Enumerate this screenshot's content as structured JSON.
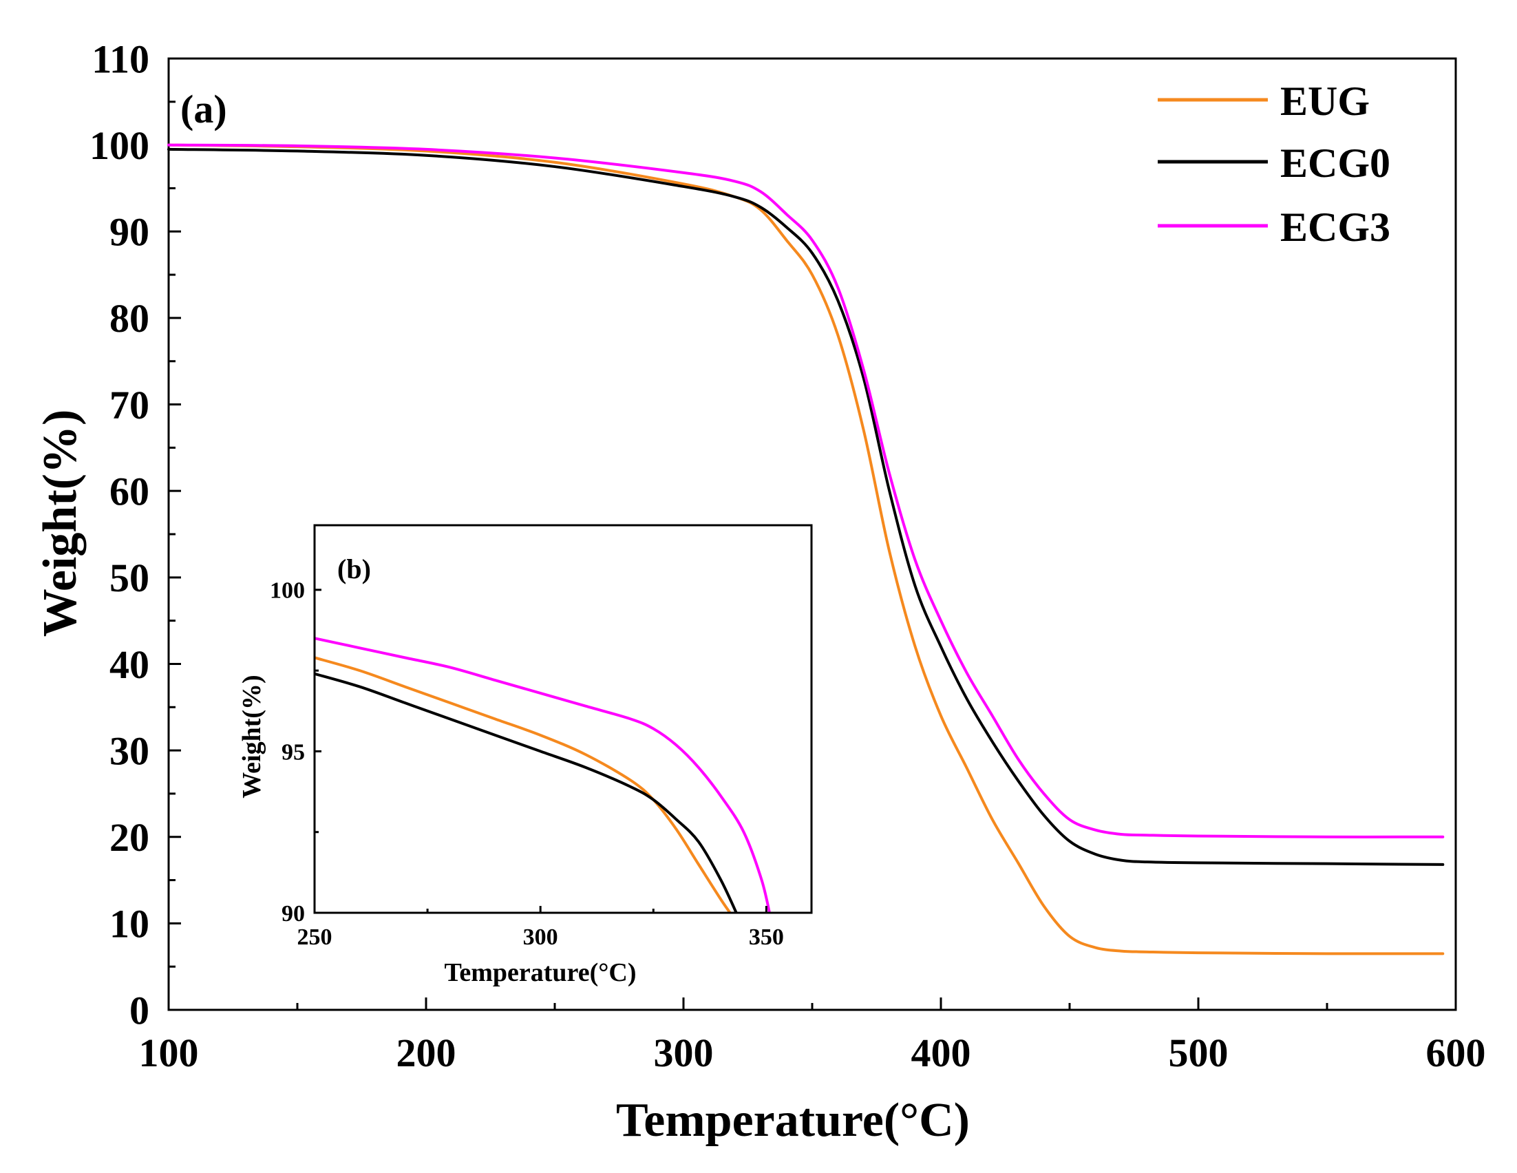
{
  "chart_data": [
    {
      "id": "main",
      "type": "line",
      "panel_label": "(a)",
      "xlabel": "Temperature(°C)",
      "ylabel": "Weight(%)",
      "xlim": [
        100,
        600
      ],
      "ylim": [
        0,
        110
      ],
      "xticks": [
        100,
        200,
        300,
        400,
        500,
        600
      ],
      "yticks": [
        0,
        10,
        20,
        30,
        40,
        50,
        60,
        70,
        80,
        90,
        100,
        110
      ],
      "xtick_labels": [
        "100",
        "200",
        "300",
        "400",
        "500",
        "600"
      ],
      "ytick_labels": [
        "0",
        "10",
        "20",
        "30",
        "40",
        "50",
        "60",
        "70",
        "80",
        "90",
        "100",
        "110"
      ],
      "legend": {
        "position": "top-right",
        "entries": [
          "EUG",
          "ECG0",
          "ECG3"
        ]
      },
      "series": [
        {
          "name": "EUG",
          "color": "#f5891e",
          "x": [
            100,
            150,
            200,
            250,
            300,
            320,
            330,
            340,
            350,
            360,
            370,
            380,
            390,
            400,
            410,
            420,
            430,
            440,
            450,
            460,
            470,
            480,
            500,
            550,
            595
          ],
          "y": [
            100,
            99.8,
            99.3,
            98,
            95.5,
            94,
            92.5,
            89,
            85,
            78,
            67,
            53,
            42,
            34,
            28,
            22,
            17,
            12,
            8.5,
            7.2,
            6.8,
            6.7,
            6.6,
            6.5,
            6.5
          ]
        },
        {
          "name": "ECG0",
          "color": "#000000",
          "x": [
            100,
            150,
            200,
            250,
            300,
            320,
            330,
            340,
            350,
            360,
            370,
            380,
            390,
            400,
            410,
            420,
            430,
            440,
            450,
            460,
            470,
            480,
            500,
            550,
            595
          ],
          "y": [
            99.5,
            99.3,
            98.8,
            97.5,
            95.2,
            94,
            92.8,
            90.5,
            87.5,
            82,
            73,
            60,
            49,
            42,
            36,
            31,
            26.5,
            22.5,
            19.5,
            18,
            17.3,
            17.1,
            17,
            16.9,
            16.8
          ]
        },
        {
          "name": "ECG3",
          "color": "#ff00ff",
          "x": [
            100,
            150,
            200,
            250,
            300,
            320,
            330,
            340,
            350,
            360,
            370,
            380,
            390,
            400,
            410,
            420,
            430,
            440,
            450,
            460,
            470,
            480,
            500,
            550,
            595
          ],
          "y": [
            100,
            99.9,
            99.5,
            98.5,
            96.8,
            95.8,
            94.6,
            92,
            89,
            83.5,
            74,
            62,
            52,
            45,
            39,
            34,
            29,
            25,
            22,
            20.8,
            20.3,
            20.2,
            20.1,
            20,
            20
          ]
        }
      ]
    },
    {
      "id": "inset",
      "type": "line",
      "panel_label": "(b)",
      "xlabel": "Temperature(°C)",
      "ylabel": "Weight(%)",
      "xlim": [
        250,
        360
      ],
      "ylim": [
        90,
        102
      ],
      "xticks": [
        250,
        300,
        350
      ],
      "yticks": [
        90,
        95,
        100
      ],
      "xtick_labels": [
        "250",
        "300",
        "350"
      ],
      "ytick_labels": [
        "90",
        "95",
        "100"
      ],
      "series": [
        {
          "name": "EUG",
          "color": "#f5891e",
          "x": [
            250,
            260,
            270,
            280,
            290,
            300,
            310,
            320,
            325,
            330,
            335,
            340,
            343
          ],
          "y": [
            97.9,
            97.5,
            97,
            96.5,
            96,
            95.5,
            94.9,
            94.1,
            93.5,
            92.6,
            91.5,
            90.4,
            89.8
          ]
        },
        {
          "name": "ECG0",
          "color": "#000000",
          "x": [
            250,
            260,
            270,
            280,
            290,
            300,
            310,
            320,
            325,
            330,
            335,
            340,
            344
          ],
          "y": [
            97.4,
            97,
            96.5,
            96,
            95.5,
            95,
            94.5,
            93.9,
            93.5,
            92.9,
            92.2,
            91,
            89.8
          ]
        },
        {
          "name": "ECG3",
          "color": "#ff00ff",
          "x": [
            250,
            260,
            270,
            280,
            290,
            300,
            310,
            320,
            325,
            330,
            335,
            340,
            345,
            349,
            351
          ],
          "y": [
            98.5,
            98.2,
            97.9,
            97.6,
            97.2,
            96.8,
            96.4,
            96,
            95.7,
            95.2,
            94.5,
            93.6,
            92.5,
            91,
            89.8
          ]
        }
      ]
    }
  ]
}
